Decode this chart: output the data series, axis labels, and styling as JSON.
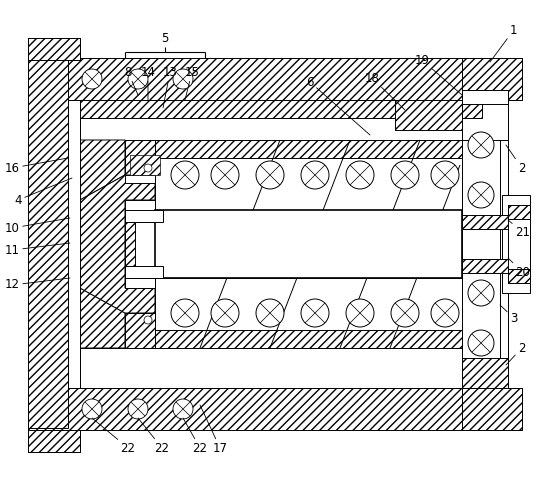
{
  "fig_width": 5.46,
  "fig_height": 4.84,
  "dpi": 100,
  "bg_color": "#ffffff",
  "lc": "#000000",
  "lw": 0.7,
  "lw_thick": 1.2
}
